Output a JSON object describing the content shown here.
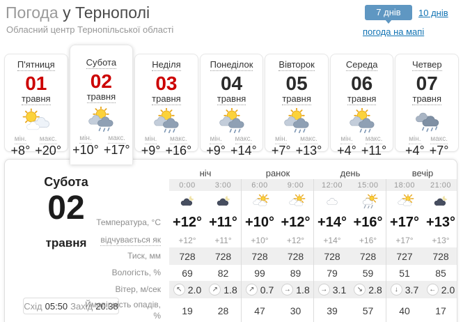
{
  "colors": {
    "accent_blue": "#5f97c2",
    "link_blue": "#1173b3",
    "date_red": "#cc0000"
  },
  "header": {
    "title_light": "Погода",
    "title_dark": "у Тернополі",
    "subtitle": "Обласний центр Тернопільської області",
    "days7": "7 днів",
    "days10": "10 днів",
    "map_link": "погода на мапі"
  },
  "day_cards": [
    {
      "day": "П'ятниця",
      "date": "01",
      "month": "травня",
      "red": true,
      "selected": false,
      "icon": "sun-cloud",
      "min_label": "мін.",
      "max_label": "макс.",
      "min": "+8°",
      "max": "+20°"
    },
    {
      "day": "Субота",
      "date": "02",
      "month": "травня",
      "red": true,
      "selected": true,
      "icon": "sun-rain",
      "min_label": "мін.",
      "max_label": "макс.",
      "min": "+10°",
      "max": "+17°"
    },
    {
      "day": "Неділя",
      "date": "03",
      "month": "травня",
      "red": true,
      "selected": false,
      "icon": "sun-rain",
      "min_label": "мін.",
      "max_label": "макс.",
      "min": "+9°",
      "max": "+16°"
    },
    {
      "day": "Понеділок",
      "date": "04",
      "month": "травня",
      "red": false,
      "selected": false,
      "icon": "sun-rain",
      "min_label": "мін.",
      "max_label": "макс.",
      "min": "+9°",
      "max": "+14°"
    },
    {
      "day": "Вівторок",
      "date": "05",
      "month": "травня",
      "red": false,
      "selected": false,
      "icon": "sun-rain",
      "min_label": "мін.",
      "max_label": "макс.",
      "min": "+7°",
      "max": "+13°"
    },
    {
      "day": "Середа",
      "date": "06",
      "month": "травня",
      "red": false,
      "selected": false,
      "icon": "sun-rain",
      "min_label": "мін.",
      "max_label": "макс.",
      "min": "+4°",
      "max": "+11°"
    },
    {
      "day": "Четвер",
      "date": "07",
      "month": "травня",
      "red": false,
      "selected": false,
      "icon": "rain",
      "min_label": "мін.",
      "max_label": "макс.",
      "min": "+4°",
      "max": "+7°"
    }
  ],
  "detail": {
    "day": "Субота",
    "date": "02",
    "month": "травня",
    "sunrise_label": "Схід",
    "sunrise_time": "05:50",
    "sunset_label": "Захід",
    "sunset_time": "20:38",
    "groups": [
      "ніч",
      "ранок",
      "день",
      "вечір"
    ],
    "times": [
      "0:00",
      "3:00",
      "6:00",
      "9:00",
      "12:00",
      "15:00",
      "18:00",
      "21:00"
    ],
    "icons": [
      "night-cloud",
      "night-cloud",
      "sun-clouds",
      "sun-clouds",
      "cloud",
      "sun-rain",
      "sun-clouds",
      "night-cloud"
    ],
    "rows": [
      {
        "label": "Температура, °C",
        "style": "temp",
        "label_dotted": false,
        "values": [
          "+12°",
          "+11°",
          "+10°",
          "+12°",
          "+14°",
          "+16°",
          "+17°",
          "+13°"
        ]
      },
      {
        "label": "відчувається як",
        "style": "feels",
        "label_dotted": true,
        "values": [
          "+12°",
          "+11°",
          "+10°",
          "+12°",
          "+14°",
          "+16°",
          "+17°",
          "+13°"
        ]
      },
      {
        "label": "Тиск, мм",
        "style": "plain band",
        "label_dotted": false,
        "values": [
          "728",
          "728",
          "728",
          "728",
          "728",
          "728",
          "727",
          "728"
        ]
      },
      {
        "label": "Вологість, %",
        "style": "plain",
        "label_dotted": false,
        "values": [
          "69",
          "82",
          "99",
          "89",
          "79",
          "59",
          "51",
          "85"
        ]
      },
      {
        "label": "Вітер, м/сек",
        "style": "wind band",
        "label_dotted": false,
        "values": [
          {
            "d": "↖",
            "s": "2.0"
          },
          {
            "d": "↗",
            "s": "1.8"
          },
          {
            "d": "↗",
            "s": "0.7"
          },
          {
            "d": "→",
            "s": "1.8"
          },
          {
            "d": "→",
            "s": "3.1"
          },
          {
            "d": "↘",
            "s": "2.8"
          },
          {
            "d": "↓",
            "s": "3.7"
          },
          {
            "d": "←",
            "s": "2.0"
          }
        ]
      },
      {
        "label": "Ймовірність опадів, %",
        "style": "plain",
        "label_dotted": false,
        "values": [
          "19",
          "28",
          "47",
          "30",
          "39",
          "57",
          "40",
          "17"
        ]
      }
    ]
  }
}
